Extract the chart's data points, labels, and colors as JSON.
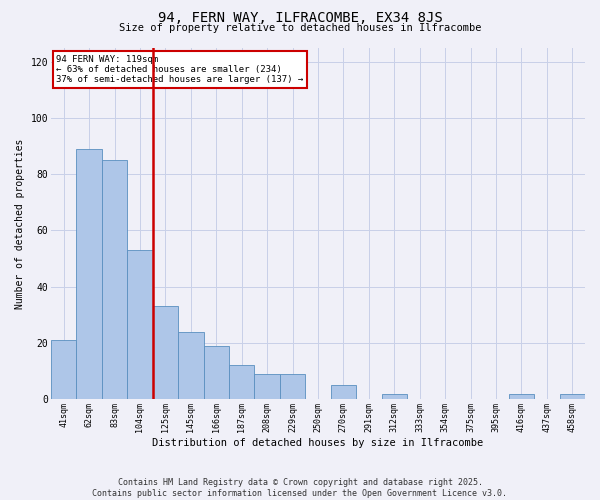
{
  "title": "94, FERN WAY, ILFRACOMBE, EX34 8JS",
  "subtitle": "Size of property relative to detached houses in Ilfracombe",
  "xlabel": "Distribution of detached houses by size in Ilfracombe",
  "ylabel": "Number of detached properties",
  "categories": [
    "41sqm",
    "62sqm",
    "83sqm",
    "104sqm",
    "125sqm",
    "145sqm",
    "166sqm",
    "187sqm",
    "208sqm",
    "229sqm",
    "250sqm",
    "270sqm",
    "291sqm",
    "312sqm",
    "333sqm",
    "354sqm",
    "375sqm",
    "395sqm",
    "416sqm",
    "437sqm",
    "458sqm"
  ],
  "values": [
    21,
    89,
    85,
    53,
    33,
    24,
    19,
    12,
    9,
    9,
    0,
    5,
    0,
    2,
    0,
    0,
    0,
    0,
    2,
    0,
    2
  ],
  "bar_color": "#aec6e8",
  "bar_edge_color": "#5a8fc0",
  "vline_color": "#cc0000",
  "annotation_title": "94 FERN WAY: 119sqm",
  "annotation_line2": "← 63% of detached houses are smaller (234)",
  "annotation_line3": "37% of semi-detached houses are larger (137) →",
  "annotation_box_color": "#cc0000",
  "ylim": [
    0,
    125
  ],
  "yticks": [
    0,
    20,
    40,
    60,
    80,
    100,
    120
  ],
  "footer1": "Contains HM Land Registry data © Crown copyright and database right 2025.",
  "footer2": "Contains public sector information licensed under the Open Government Licence v3.0.",
  "bg_color": "#f0f0f8",
  "grid_color": "#c8d0e8"
}
